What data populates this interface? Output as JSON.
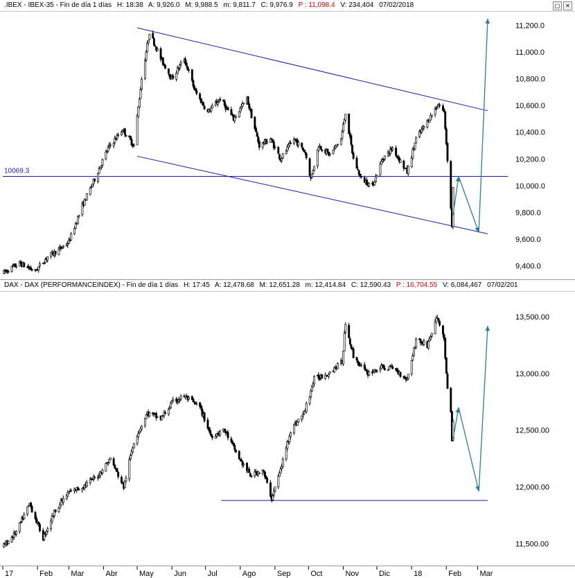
{
  "top_header": {
    "symbol": ".IBEX - IBEX-35 - Fin de día 1 días",
    "h": "H: 18:38",
    "a": "A: 9,926.0",
    "m": "M: 9,988.5",
    "min": "m: 9,811.7",
    "c": "C: 9,976.9",
    "p": "P : 11,098.4",
    "v": "V: 234,404",
    "date": "07/02/2018"
  },
  "bottom_header": {
    "symbol": "DAX - DAX (PERFORMANCEINDEX) - Fin de día 1 días",
    "h": "H: 17:45",
    "a": "A: 12,478.68",
    "m": "M: 12,651.28",
    "min": "m: 12,414.84",
    "c": "C: 12,590.43",
    "p": "P : 16,704.55",
    "v": "V: 6,084,467",
    "date": "07/02/201"
  },
  "window_buttons": [
    "▢",
    "✕"
  ],
  "colors": {
    "trendline": "#1a1aa8",
    "projection": "#2e7d9a",
    "candle": "#000000",
    "price_red": "#d40000"
  },
  "chart_data": [
    {
      "type": "candlestick",
      "title": ".IBEX - IBEX-35",
      "ylim": [
        9300,
        11300
      ],
      "ytick_labels": [
        "11,200.0",
        "11,000.0",
        "10,800.0",
        "10,600.0",
        "10,400.0",
        "10,200.0",
        "10,000.0",
        "9,800.0",
        "9,600.0",
        "9,400.0"
      ],
      "ytick_values": [
        11200,
        11000,
        10800,
        10600,
        10400,
        10200,
        10000,
        9800,
        9600,
        9400
      ],
      "horizontal_line": {
        "value": 10069.3,
        "label": "10069.3"
      },
      "trend_channel": {
        "upper": [
          [
            "2017-05-01",
            11180
          ],
          [
            "2018-03-10",
            10560
          ]
        ],
        "lower": [
          [
            "2017-05-01",
            10220
          ],
          [
            "2018-03-10",
            9640
          ]
        ]
      },
      "projection_arrows": [
        [
          [
            "2018-02-07",
            9780
          ],
          [
            "2018-02-12",
            10070
          ],
          [
            "2018-03-02",
            9650
          ],
          [
            "2018-03-10",
            11250
          ]
        ]
      ],
      "path": [
        [
          "2017-01-02",
          9350
        ],
        [
          "2017-01-16",
          9420
        ],
        [
          "2017-01-30",
          9360
        ],
        [
          "2017-02-10",
          9470
        ],
        [
          "2017-02-20",
          9520
        ],
        [
          "2017-03-01",
          9580
        ],
        [
          "2017-03-13",
          9850
        ],
        [
          "2017-03-24",
          10050
        ],
        [
          "2017-04-05",
          10280
        ],
        [
          "2017-04-18",
          10420
        ],
        [
          "2017-04-28",
          10300
        ],
        [
          "2017-05-05",
          10800
        ],
        [
          "2017-05-12",
          11150
        ],
        [
          "2017-05-22",
          10950
        ],
        [
          "2017-06-01",
          10800
        ],
        [
          "2017-06-12",
          10950
        ],
        [
          "2017-06-22",
          10700
        ],
        [
          "2017-07-03",
          10550
        ],
        [
          "2017-07-14",
          10650
        ],
        [
          "2017-07-26",
          10500
        ],
        [
          "2017-08-07",
          10650
        ],
        [
          "2017-08-18",
          10300
        ],
        [
          "2017-08-28",
          10350
        ],
        [
          "2017-09-06",
          10200
        ],
        [
          "2017-09-18",
          10350
        ],
        [
          "2017-09-28",
          10250
        ],
        [
          "2017-10-03",
          10050
        ],
        [
          "2017-10-10",
          10300
        ],
        [
          "2017-10-20",
          10230
        ],
        [
          "2017-10-30",
          10350
        ],
        [
          "2017-11-03",
          10550
        ],
        [
          "2017-11-10",
          10200
        ],
        [
          "2017-11-17",
          10050
        ],
        [
          "2017-11-27",
          10000
        ],
        [
          "2017-12-06",
          10200
        ],
        [
          "2017-12-15",
          10280
        ],
        [
          "2017-12-28",
          10100
        ],
        [
          "2018-01-05",
          10350
        ],
        [
          "2018-01-15",
          10480
        ],
        [
          "2018-01-25",
          10610
        ],
        [
          "2018-01-30",
          10550
        ],
        [
          "2018-02-02",
          10200
        ],
        [
          "2018-02-05",
          9830
        ],
        [
          "2018-02-06",
          9700
        ],
        [
          "2018-02-07",
          9977
        ]
      ]
    },
    {
      "type": "candlestick",
      "title": "DAX - DAX (PERFORMANCEINDEX)",
      "ylim": [
        11300,
        13720
      ],
      "ytick_labels": [
        "13,500.00",
        "13,000.00",
        "12,500.00",
        "12,000.00",
        "11,500.00"
      ],
      "ytick_values": [
        13500,
        13000,
        12500,
        12000,
        11500
      ],
      "horizontal_line": {
        "value": 11880,
        "from": "2017-07-15",
        "to": "2018-03-10"
      },
      "projection_arrows": [
        [
          [
            "2018-02-07",
            12420
          ],
          [
            "2018-02-12",
            12700
          ],
          [
            "2018-03-02",
            11960
          ],
          [
            "2018-03-10",
            13420
          ]
        ]
      ],
      "path": [
        [
          "2017-01-02",
          11480
        ],
        [
          "2017-01-13",
          11600
        ],
        [
          "2017-01-25",
          11850
        ],
        [
          "2017-02-06",
          11550
        ],
        [
          "2017-02-17",
          11800
        ],
        [
          "2017-03-01",
          11950
        ],
        [
          "2017-03-13",
          12000
        ],
        [
          "2017-03-27",
          12100
        ],
        [
          "2017-04-07",
          12250
        ],
        [
          "2017-04-19",
          12000
        ],
        [
          "2017-04-28",
          12400
        ],
        [
          "2017-05-10",
          12650
        ],
        [
          "2017-05-22",
          12600
        ],
        [
          "2017-06-02",
          12750
        ],
        [
          "2017-06-12",
          12800
        ],
        [
          "2017-06-26",
          12700
        ],
        [
          "2017-07-06",
          12450
        ],
        [
          "2017-07-18",
          12500
        ],
        [
          "2017-07-31",
          12250
        ],
        [
          "2017-08-10",
          12100
        ],
        [
          "2017-08-21",
          12150
        ],
        [
          "2017-08-29",
          11900
        ],
        [
          "2017-09-06",
          12150
        ],
        [
          "2017-09-15",
          12500
        ],
        [
          "2017-09-27",
          12650
        ],
        [
          "2017-10-06",
          12950
        ],
        [
          "2017-10-18",
          13000
        ],
        [
          "2017-10-31",
          13100
        ],
        [
          "2017-11-03",
          13450
        ],
        [
          "2017-11-10",
          13150
        ],
        [
          "2017-11-22",
          13000
        ],
        [
          "2017-12-04",
          13050
        ],
        [
          "2017-12-15",
          13050
        ],
        [
          "2017-12-28",
          12950
        ],
        [
          "2018-01-05",
          13300
        ],
        [
          "2018-01-15",
          13250
        ],
        [
          "2018-01-24",
          13500
        ],
        [
          "2018-01-30",
          13300
        ],
        [
          "2018-02-02",
          12850
        ],
        [
          "2018-02-05",
          12650
        ],
        [
          "2018-02-06",
          12400
        ],
        [
          "2018-02-07",
          12590
        ]
      ]
    }
  ],
  "x_axis": {
    "labels": [
      "17",
      "Feb",
      "Mar",
      "Abr",
      "May",
      "Jun",
      "Jul",
      "Ago",
      "Sep",
      "Oct",
      "Nov",
      "Dic",
      "18",
      "Feb",
      "Mar"
    ],
    "dates": [
      "2017-01-01",
      "2017-02-01",
      "2017-03-01",
      "2017-04-01",
      "2017-05-01",
      "2017-06-01",
      "2017-07-01",
      "2017-08-01",
      "2017-09-01",
      "2017-10-01",
      "2017-11-01",
      "2017-12-01",
      "2018-01-01",
      "2018-02-01",
      "2018-03-01"
    ]
  }
}
